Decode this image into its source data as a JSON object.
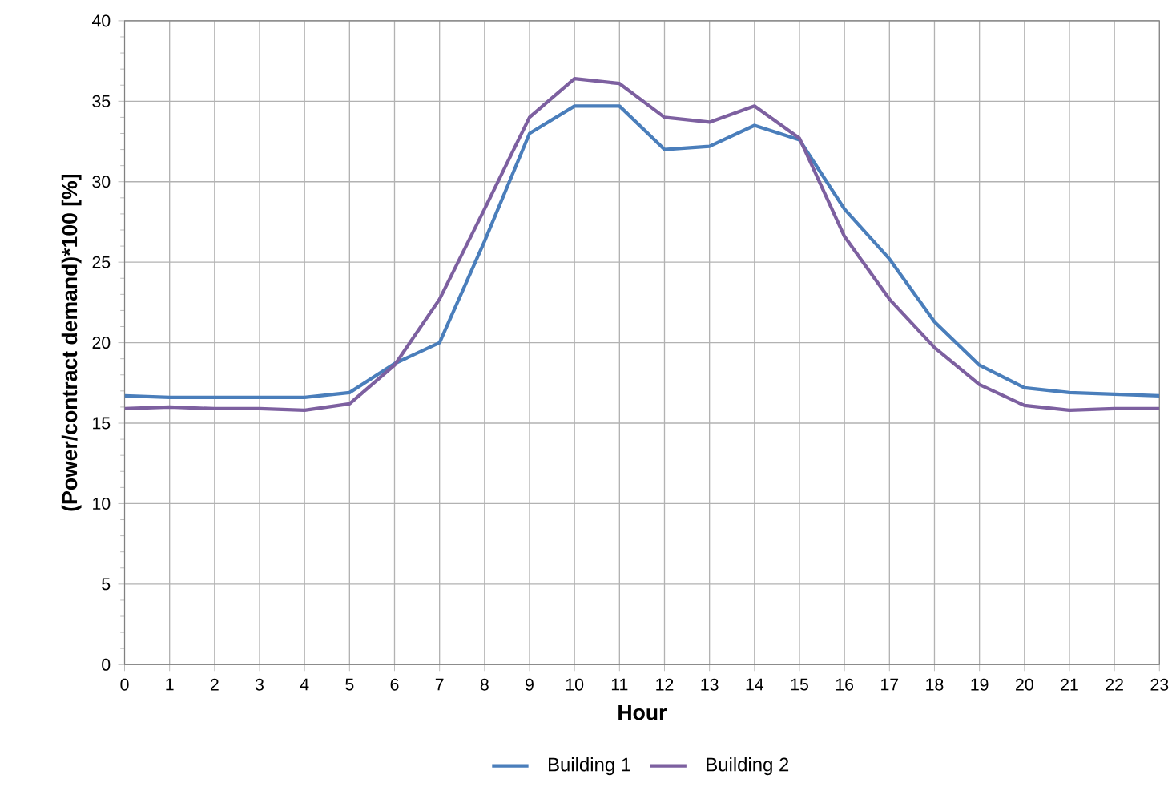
{
  "chart_data": {
    "type": "line",
    "xlabel": "Hour",
    "ylabel": "(Power/contract demand)*100 [%]",
    "x": [
      0,
      1,
      2,
      3,
      4,
      5,
      6,
      7,
      8,
      9,
      10,
      11,
      12,
      13,
      14,
      15,
      16,
      17,
      18,
      19,
      20,
      21,
      22,
      23
    ],
    "series": [
      {
        "name": "Building 1",
        "color": "#4a7ebb",
        "values": [
          16.7,
          16.6,
          16.6,
          16.6,
          16.6,
          16.9,
          18.7,
          20,
          26.3,
          33,
          34.7,
          34.7,
          32,
          32.2,
          33.5,
          32.6,
          28.3,
          25.2,
          21.3,
          18.6,
          17.2,
          16.9,
          16.8,
          16.7
        ]
      },
      {
        "name": "Building 2",
        "color": "#7d60a0",
        "values": [
          15.9,
          16,
          15.9,
          15.9,
          15.8,
          16.2,
          18.6,
          22.7,
          28.3,
          34,
          36.4,
          36.1,
          34,
          33.7,
          34.7,
          32.7,
          26.6,
          22.7,
          19.7,
          17.4,
          16.1,
          15.8,
          15.9,
          15.9
        ]
      }
    ],
    "xlim": [
      0,
      23
    ],
    "xticks": [
      0,
      1,
      2,
      3,
      4,
      5,
      6,
      7,
      8,
      9,
      10,
      11,
      12,
      13,
      14,
      15,
      16,
      17,
      18,
      19,
      20,
      21,
      22,
      23
    ],
    "ylim": [
      0,
      40
    ],
    "yticks": [
      0,
      5,
      10,
      15,
      20,
      25,
      30,
      35,
      40
    ],
    "grid": true,
    "legend": "bottom",
    "marker": "none",
    "line_style": "solid"
  }
}
